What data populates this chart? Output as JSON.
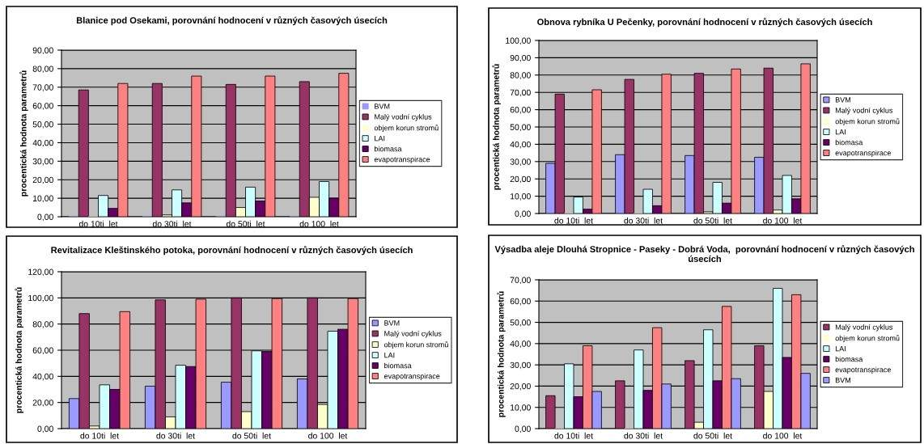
{
  "chart_data": [
    {
      "type": "bar",
      "title": "Blanice pod Osekami, porovnání hodnocení v různých časových úsecích",
      "ylabel": "procentická hodnota parametrů",
      "categories": [
        "do 10ti  let",
        "do 30ti  let",
        "do 50ti  let",
        "do 100  let"
      ],
      "ylim": [
        0,
        90
      ],
      "yticks": [
        {
          "value": 0,
          "label": "0,00"
        },
        {
          "value": 10,
          "label": "10,00"
        },
        {
          "value": 20,
          "label": "20,00"
        },
        {
          "value": 30,
          "label": "30,00"
        },
        {
          "value": 40,
          "label": "40,00"
        },
        {
          "value": 50,
          "label": "50,00"
        },
        {
          "value": 60,
          "label": "60,00"
        },
        {
          "value": 70,
          "label": "70,00"
        },
        {
          "value": 80,
          "label": "80,00"
        },
        {
          "value": 90,
          "label": "90,00"
        }
      ],
      "grid": "y",
      "legend": "right",
      "series": [
        {
          "name": "BVM",
          "color": "#9999ff",
          "values": [
            0,
            0,
            0,
            0
          ]
        },
        {
          "name": "Malý vodní cyklus",
          "color": "#993366",
          "values": [
            68.5,
            72,
            71.5,
            73
          ]
        },
        {
          "name": "objem korun stromů",
          "color": "#ffffcc",
          "values": [
            0,
            1,
            5,
            10.5
          ]
        },
        {
          "name": "LAI",
          "color": "#ccffff",
          "values": [
            11.5,
            14.5,
            16,
            19
          ]
        },
        {
          "name": "biomasa",
          "color": "#660066",
          "values": [
            4.5,
            7.5,
            8.5,
            10
          ]
        },
        {
          "name": "evapotranspirace",
          "color": "#ff8080",
          "values": [
            72,
            76,
            76,
            77.5
          ]
        }
      ]
    },
    {
      "type": "bar",
      "title": "Obnova rybníka U Pečenky, porovnání hodnocení v různých časových úsecích",
      "ylabel": "procentická hodnota parametrů",
      "categories": [
        "do 10ti  let",
        "do 30ti  let",
        "do 50ti  let",
        "do 100  let"
      ],
      "ylim": [
        0,
        100
      ],
      "yticks": [
        {
          "value": 0,
          "label": "0,00"
        },
        {
          "value": 10,
          "label": "10,00"
        },
        {
          "value": 20,
          "label": "20,00"
        },
        {
          "value": 30,
          "label": "30,00"
        },
        {
          "value": 40,
          "label": "40,00"
        },
        {
          "value": 50,
          "label": "50,00"
        },
        {
          "value": 60,
          "label": "60,00"
        },
        {
          "value": 70,
          "label": "70,00"
        },
        {
          "value": 80,
          "label": "80,00"
        },
        {
          "value": 90,
          "label": "90,00"
        },
        {
          "value": 100,
          "label": "100,00"
        }
      ],
      "grid": "y",
      "legend": "right",
      "series": [
        {
          "name": "BVM",
          "color": "#9999ff",
          "values": [
            29,
            34,
            33.5,
            32.5
          ]
        },
        {
          "name": "Malý vodní cyklus",
          "color": "#993366",
          "values": [
            69,
            77.5,
            81,
            84
          ]
        },
        {
          "name": "objem korun stromů",
          "color": "#ffffcc",
          "values": [
            0,
            null,
            1,
            2
          ]
        },
        {
          "name": "LAI",
          "color": "#ccffff",
          "values": [
            9.5,
            14,
            18,
            22
          ]
        },
        {
          "name": "biomasa",
          "color": "#660066",
          "values": [
            2.5,
            4.5,
            6,
            8.5
          ]
        },
        {
          "name": "evapotranspirace",
          "color": "#ff8080",
          "values": [
            71.5,
            80.5,
            83.5,
            86.5
          ]
        }
      ]
    },
    {
      "type": "bar",
      "title": "Revitalizace Kleštinského potoka, porovnání hodnocení v různých časových úsecích",
      "ylabel": "procentická hodnota parametrů",
      "categories": [
        "do 10ti  let",
        "do 30ti  let",
        "do 50ti  let",
        "do 100  let"
      ],
      "ylim": [
        0,
        120
      ],
      "yticks": [
        {
          "value": 0,
          "label": "0,00"
        },
        {
          "value": 20,
          "label": "20,00"
        },
        {
          "value": 40,
          "label": "40,00"
        },
        {
          "value": 60,
          "label": "60,00"
        },
        {
          "value": 80,
          "label": "80,00"
        },
        {
          "value": 100,
          "label": "100,00"
        },
        {
          "value": 120,
          "label": "120,00"
        }
      ],
      "grid": "y",
      "legend": "right",
      "series": [
        {
          "name": "BVM",
          "color": "#9999ff",
          "values": [
            23,
            32.5,
            35.5,
            38
          ]
        },
        {
          "name": "Malý vodní cyklus",
          "color": "#993366",
          "values": [
            88,
            98.5,
            100,
            100
          ]
        },
        {
          "name": "objem korun stromů",
          "color": "#ffffcc",
          "values": [
            2,
            9,
            13,
            18.5
          ]
        },
        {
          "name": "LAI",
          "color": "#ccffff",
          "values": [
            33.5,
            48.5,
            59.5,
            74.5
          ]
        },
        {
          "name": "biomasa",
          "color": "#660066",
          "values": [
            30,
            47.5,
            59,
            76
          ]
        },
        {
          "name": "evapotranspirace",
          "color": "#ff8080",
          "values": [
            89.5,
            99,
            99.5,
            99.5
          ]
        }
      ]
    },
    {
      "type": "bar",
      "title": "Výsadba aleje Dlouhá Stropnice - Paseky - Dobrá Voda,  porovnání hodnocení v různých časových úsecích",
      "ylabel": "procentická hodnota parametrů",
      "categories": [
        "do 10ti  let",
        "do 30ti  let",
        "do 50ti  let",
        "do 100  let"
      ],
      "ylim": [
        0,
        70
      ],
      "yticks": [
        {
          "value": 0,
          "label": "0,00"
        },
        {
          "value": 10,
          "label": "10,00"
        },
        {
          "value": 20,
          "label": "20,00"
        },
        {
          "value": 30,
          "label": "30,00"
        },
        {
          "value": 40,
          "label": "40,00"
        },
        {
          "value": 50,
          "label": "50,00"
        },
        {
          "value": 60,
          "label": "60,00"
        },
        {
          "value": 70,
          "label": "70,00"
        }
      ],
      "grid": "y",
      "legend": "right",
      "series": [
        {
          "name": "Malý vodní cyklus",
          "color": "#993366",
          "values": [
            15.5,
            22.5,
            32,
            39
          ]
        },
        {
          "name": "objem korun stromů",
          "color": "#ffffcc",
          "values": [
            0,
            null,
            3,
            17.5
          ]
        },
        {
          "name": "LAI",
          "color": "#ccffff",
          "values": [
            30.5,
            37,
            46.5,
            66
          ]
        },
        {
          "name": "biomasa",
          "color": "#660066",
          "values": [
            15,
            18,
            22.5,
            33.5
          ]
        },
        {
          "name": "evapotranspirace",
          "color": "#ff8080",
          "values": [
            39,
            47.5,
            57.5,
            63
          ]
        },
        {
          "name": "BVM",
          "color": "#9999ff",
          "values": [
            17.5,
            21,
            23.5,
            26
          ]
        }
      ]
    }
  ]
}
